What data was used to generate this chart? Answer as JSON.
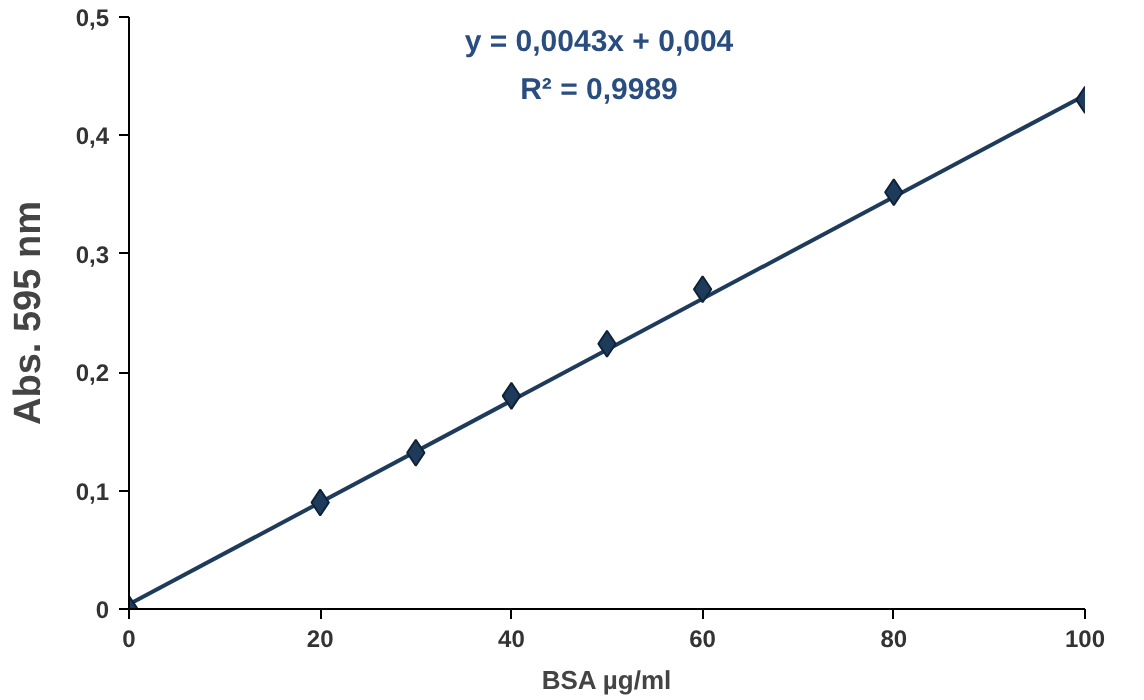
{
  "chart_data": {
    "type": "scatter",
    "xlabel": "BSA µg/ml",
    "ylabel": "Abs. 595 nm",
    "annotations": [
      "y = 0,0043x + 0,004",
      "R² = 0,9989"
    ],
    "xlim": [
      0,
      100
    ],
    "ylim": [
      0,
      0.5
    ],
    "xticks": [
      0,
      20,
      40,
      60,
      80,
      100
    ],
    "yticks": [
      0,
      {
        "value": 0.1,
        "label": "0,1"
      },
      {
        "value": 0.2,
        "label": "0,2"
      },
      {
        "value": 0.3,
        "label": "0,3"
      },
      {
        "value": 0.4,
        "label": "0,4"
      },
      {
        "value": 0.5,
        "label": "0,5"
      }
    ],
    "grid": false,
    "marker": "diamond",
    "series": [
      {
        "type": "line",
        "color": "#1f3b5c",
        "x": [
          0,
          100
        ],
        "values": [
          0.004,
          0.434
        ],
        "marker": "none",
        "line_style": "solid"
      },
      {
        "color": "#1f3b5c",
        "x": [
          0,
          20,
          30,
          40,
          50,
          60,
          80,
          100
        ],
        "values": [
          0,
          0.09,
          0.132,
          0.18,
          0.224,
          0.27,
          0.352,
          0.43
        ]
      }
    ]
  }
}
